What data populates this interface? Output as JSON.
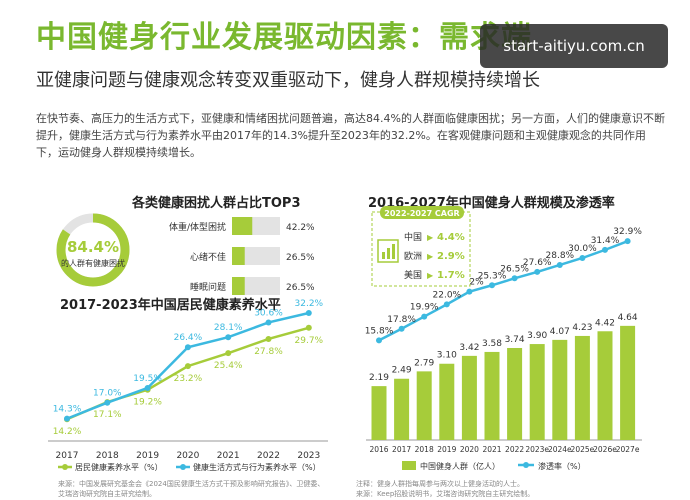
{
  "header": {
    "title": "中国健身行业发展驱动因素：需求端",
    "subtitle": "亚健康问题与健康观念转变双重驱动下，健身人群规模持续增长",
    "body": "在快节奏、高压力的生活方式下，亚健康和情绪困扰问题普遍，高达84.4%的人群面临健康困扰；另一方面，人们的健康意识不断提升，健康生活方式与行为素养水平由2017年的14.3%提升至2023年的32.2%。在客观健康问题和主观健康观念的共同作用下，运动健身人群规模持续增长。",
    "watermark": "start-aitiyu.com.cn"
  },
  "colors": {
    "green": "#7ab82f",
    "light_green": "#a6cc3a",
    "cyan": "#3cb9e0",
    "gray": "#e3e3e3"
  },
  "donut": {
    "value": 84.4,
    "big_label": "84.4%",
    "small_label": "的人群有健康困扰"
  },
  "chart_data": [
    {
      "type": "bar",
      "title": "各类健康困扰人群占比TOP3",
      "categories": [
        "体重/体型困扰",
        "心绪不佳",
        "睡眠问题"
      ],
      "values": [
        42.2,
        26.5,
        26.5
      ],
      "value_labels": [
        "42.2%",
        "26.5%",
        "26.5%"
      ],
      "orientation": "horizontal"
    },
    {
      "type": "line",
      "title": "2017-2023年中国居民健康素养水平",
      "x": [
        "2017",
        "2018",
        "2019",
        "2020",
        "2021",
        "2022",
        "2023"
      ],
      "series": [
        {
          "name": "居民健康素养水平（%）",
          "values": [
            14.2,
            17.1,
            19.2,
            23.2,
            25.4,
            27.8,
            29.7
          ],
          "labels": [
            "14.2%",
            "17.1%",
            "19.2%",
            "23.2%",
            "25.4%",
            "27.8%",
            "29.7%"
          ]
        },
        {
          "name": "健康生活方式与行为素养水平（%）",
          "values": [
            14.3,
            17.0,
            19.5,
            26.4,
            28.1,
            30.6,
            32.2
          ],
          "labels": [
            "14.3%",
            "17.0%",
            "19.5%",
            "26.4%",
            "28.1%",
            "30.6%",
            "32.2%"
          ]
        }
      ]
    },
    {
      "type": "bar",
      "title": "2016-2027年中国健身人群规模及渗透率",
      "x": [
        "2016",
        "2017",
        "2018",
        "2019",
        "2020",
        "2021",
        "2022",
        "2023e",
        "2024e",
        "2025e",
        "2026e",
        "2027e"
      ],
      "series": [
        {
          "name": "中国健身人群（亿人）",
          "values": [
            2.19,
            2.49,
            2.79,
            3.1,
            3.42,
            3.58,
            3.74,
            3.9,
            4.07,
            4.23,
            4.42,
            4.64
          ],
          "labels": [
            "2.19",
            "2.49",
            "2.79",
            "3.10",
            "3.42",
            "3.58",
            "3.74",
            "3.90",
            "4.07",
            "4.23",
            "4.42",
            "4.64"
          ]
        },
        {
          "name": "渗透率（%）",
          "values": [
            15.8,
            17.8,
            19.9,
            22.0,
            24.2,
            25.3,
            26.5,
            27.6,
            28.8,
            30.0,
            31.4,
            32.9
          ],
          "labels": [
            "15.8%",
            "17.8%",
            "19.9%",
            "22.0%",
            "24.2%",
            "25.3%",
            "26.5%",
            "27.6%",
            "28.8%",
            "30.0%",
            "31.4%",
            "32.9%"
          ]
        }
      ],
      "cagr": {
        "title": "2022-2027 CAGR",
        "rows": [
          {
            "region": "中国",
            "value": "4.4%"
          },
          {
            "region": "欧洲",
            "value": "2.9%"
          },
          {
            "region": "美国",
            "value": "1.7%"
          }
        ]
      }
    }
  ],
  "footers": {
    "left": [
      "来源：中国发展研究基金会《2024国民健康生活方式干预及影响研究报告》、卫健委、",
      "艾瑞咨询研究院自主研究绘制。"
    ],
    "right": [
      "注释：健身人群指每周参与两次以上健身活动的人士。",
      "来源：Keep招股说明书，艾瑞咨询研究院自主研究绘制。"
    ]
  }
}
